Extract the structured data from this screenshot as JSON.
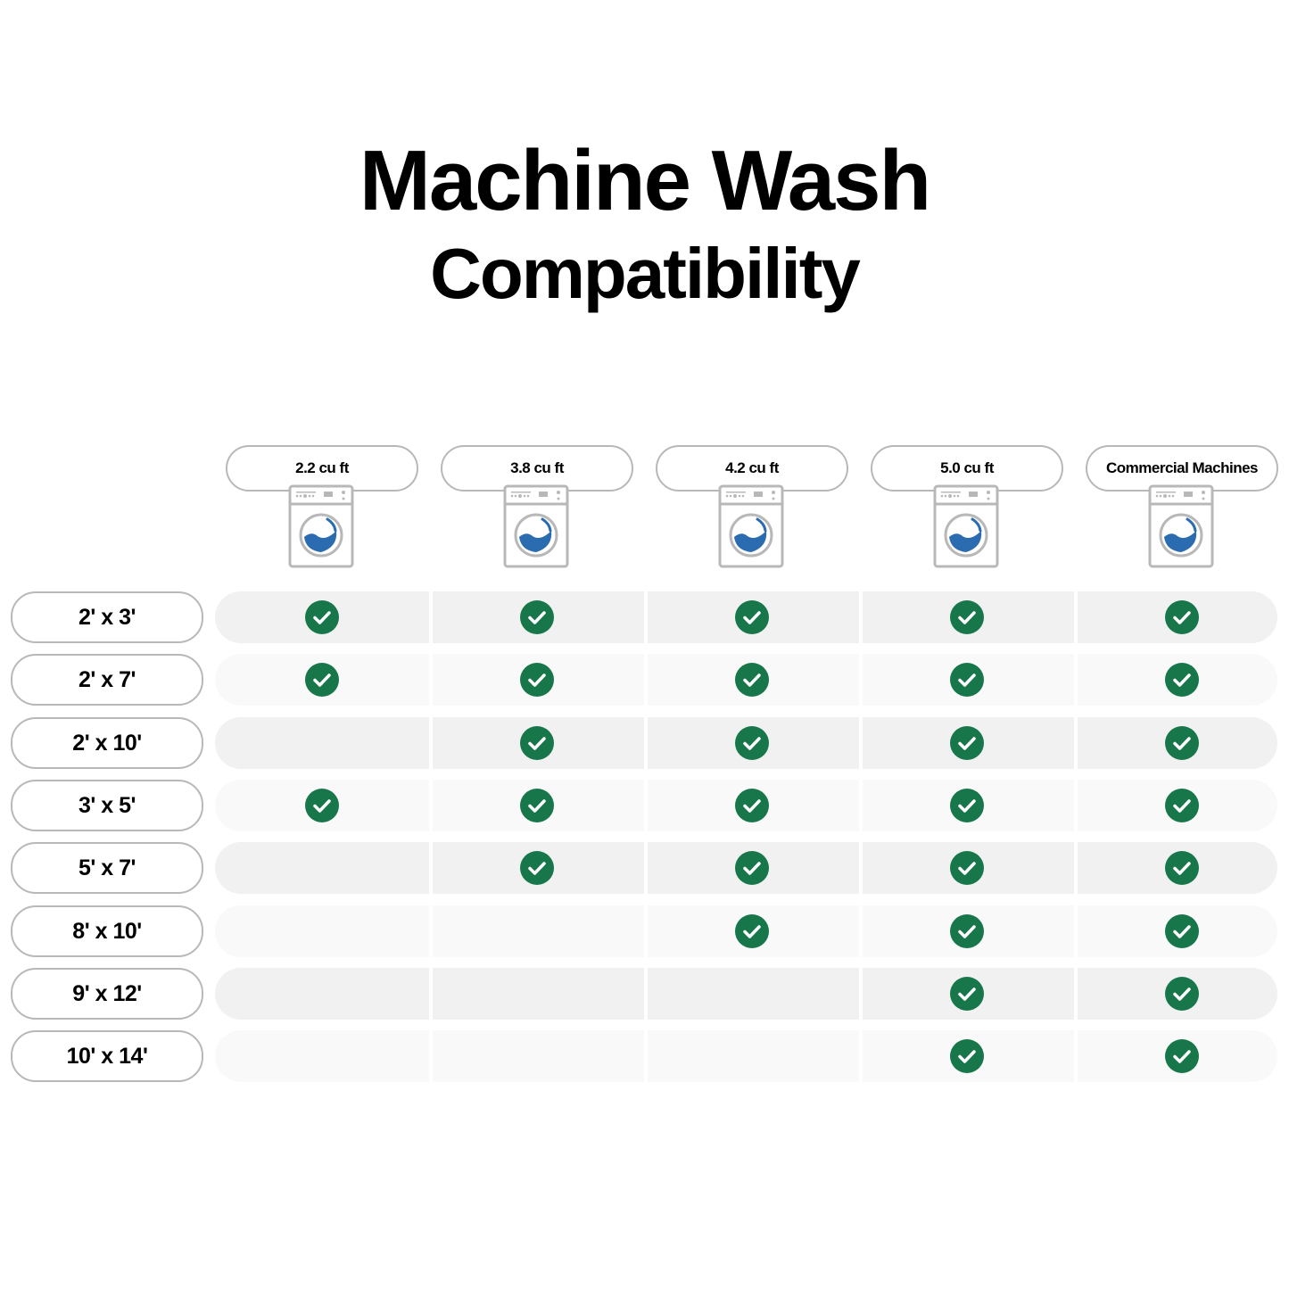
{
  "title": {
    "line1": "Machine Wash",
    "line2": "Compatibility"
  },
  "colors": {
    "check": "#17774a",
    "water": "#2b6cb0",
    "outline": "#b8b8b8",
    "row_odd": "#f1f1f1",
    "row_even": "#f9f9f9"
  },
  "columns": [
    "2.2 cu ft",
    "3.8 cu ft",
    "4.2 cu ft",
    "5.0 cu ft",
    "Commercial Machines"
  ],
  "column_icon": "washing-machine-icon",
  "rows": [
    {
      "label": "2' x 3'",
      "compatible": [
        true,
        true,
        true,
        true,
        true
      ]
    },
    {
      "label": "2' x 7'",
      "compatible": [
        true,
        true,
        true,
        true,
        true
      ]
    },
    {
      "label": "2' x 10'",
      "compatible": [
        false,
        true,
        true,
        true,
        true
      ]
    },
    {
      "label": "3' x 5'",
      "compatible": [
        true,
        true,
        true,
        true,
        true
      ]
    },
    {
      "label": "5' x 7'",
      "compatible": [
        false,
        true,
        true,
        true,
        true
      ]
    },
    {
      "label": "8' x 10'",
      "compatible": [
        false,
        false,
        true,
        true,
        true
      ]
    },
    {
      "label": "9' x 12'",
      "compatible": [
        false,
        false,
        false,
        true,
        true
      ]
    },
    {
      "label": "10' x 14'",
      "compatible": [
        false,
        false,
        false,
        true,
        true
      ]
    }
  ],
  "chart_data": {
    "type": "table",
    "title": "Machine Wash Compatibility",
    "columns": [
      "2.2 cu ft",
      "3.8 cu ft",
      "4.2 cu ft",
      "5.0 cu ft",
      "Commercial Machines"
    ],
    "row_labels": [
      "2' x 3'",
      "2' x 7'",
      "2' x 10'",
      "3' x 5'",
      "5' x 7'",
      "8' x 10'",
      "9' x 12'",
      "10' x 14'"
    ],
    "values": [
      [
        true,
        true,
        true,
        true,
        true
      ],
      [
        true,
        true,
        true,
        true,
        true
      ],
      [
        false,
        true,
        true,
        true,
        true
      ],
      [
        true,
        true,
        true,
        true,
        true
      ],
      [
        false,
        true,
        true,
        true,
        true
      ],
      [
        false,
        false,
        true,
        true,
        true
      ],
      [
        false,
        false,
        false,
        true,
        true
      ],
      [
        false,
        false,
        false,
        true,
        true
      ]
    ]
  }
}
